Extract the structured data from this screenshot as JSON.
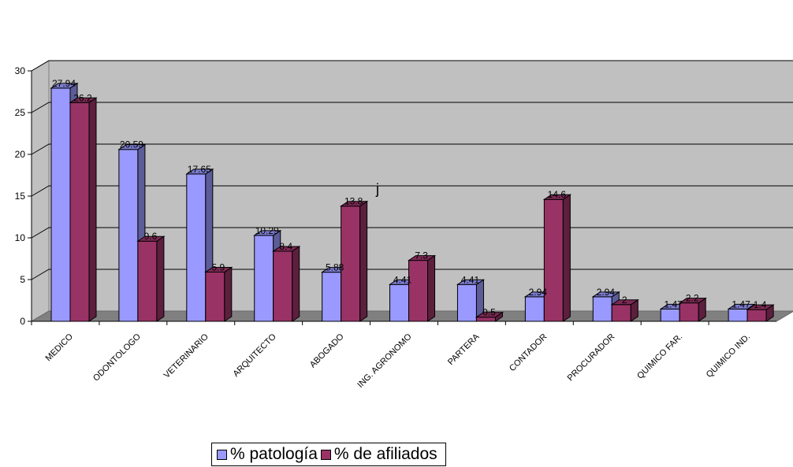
{
  "chart_data": {
    "type": "bar",
    "categories": [
      "MEDICO",
      "ODONTOLOGO",
      "VETERINARIO",
      "ARQUITECTO",
      "ABOGADO",
      "ING. AGRONOMO",
      "PARTERA",
      "CONTADOR",
      "PROCURADOR",
      "QUIMICO FAR.",
      "QUIMICO IND."
    ],
    "series": [
      {
        "name": "% patología",
        "color": "#9999ff",
        "values": [
          27.94,
          20.59,
          17.65,
          10.29,
          5.88,
          4.41,
          4.41,
          2.94,
          2.94,
          1.47,
          1.47
        ],
        "labels": [
          "27.94",
          "20.59",
          "17.65",
          "10.29",
          "5.88",
          "4.41",
          "4.41",
          "2.94",
          "2.94",
          "1.47",
          "1.47"
        ]
      },
      {
        "name": "% de afiliados",
        "color": "#993366",
        "values": [
          26.2,
          9.6,
          5.9,
          8.4,
          13.8,
          7.3,
          0.5,
          14.6,
          2,
          2.2,
          1.4
        ],
        "labels": [
          "26.2",
          "9.6",
          "5.9",
          "8.4",
          "13.8",
          "7.3",
          "0.5",
          "14.6",
          "2",
          "2.2",
          "1.4"
        ]
      }
    ],
    "ylim": [
      0,
      30
    ],
    "yticks": [
      "0",
      "5",
      "10",
      "15",
      "20",
      "25",
      "30"
    ],
    "grid": true,
    "legend_position": "bottom"
  },
  "stray_text": "j"
}
